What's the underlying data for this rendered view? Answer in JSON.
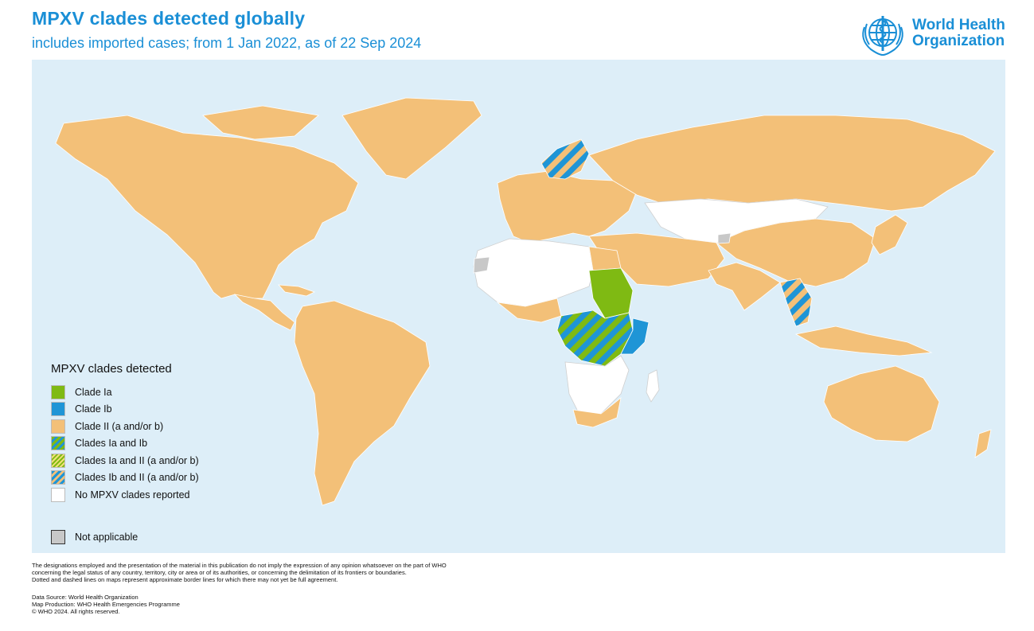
{
  "header": {
    "title": "MPXV clades detected globally",
    "subtitle": "includes imported cases; from 1 Jan 2022, as of 22 Sep 2024"
  },
  "logo": {
    "line1": "World Health",
    "line2": "Organization",
    "icon": "who-emblem-icon"
  },
  "colors": {
    "ocean": "#ddeef8",
    "clade_ia": "#7fba13",
    "clade_ib": "#1f95d6",
    "clade_ii": "#f3c078",
    "none": "#ffffff",
    "not_applicable": "#c8c8c8",
    "title": "#1a8fd6"
  },
  "legend": {
    "title": "MPXV clades detected",
    "items": [
      {
        "label": "Clade Ia",
        "swatch": "clade_ia"
      },
      {
        "label": "Clade Ib",
        "swatch": "clade_ib"
      },
      {
        "label": "Clade II (a and/or b)",
        "swatch": "clade_ii"
      },
      {
        "label": "Clades Ia and Ib",
        "swatch": "stripe_ia_ib"
      },
      {
        "label": "Clades Ia and II (a and/or b)",
        "swatch": "stripe_ia_ii"
      },
      {
        "label": "Clades Ib and II (a and/or b)",
        "swatch": "stripe_ib_ii"
      },
      {
        "label": "No MPXV clades reported",
        "swatch": "none"
      }
    ],
    "not_applicable": "Not applicable"
  },
  "footer": {
    "disclaimer": [
      "The designations employed and the presentation of the material in this publication do not imply the expression of any opinion whatsoever on the part of WHO",
      "concerning the legal status of any country, territory, city or area or of its authorities, or concerning the delimitation of its frontiers or boundaries.",
      "Dotted and dashed lines on maps represent approximate border lines for which there may not yet be full agreement."
    ],
    "source": [
      "Data Source: World Health Organization",
      "Map Production: WHO Health Emergencies Programme",
      "© WHO 2024. All rights reserved."
    ]
  }
}
